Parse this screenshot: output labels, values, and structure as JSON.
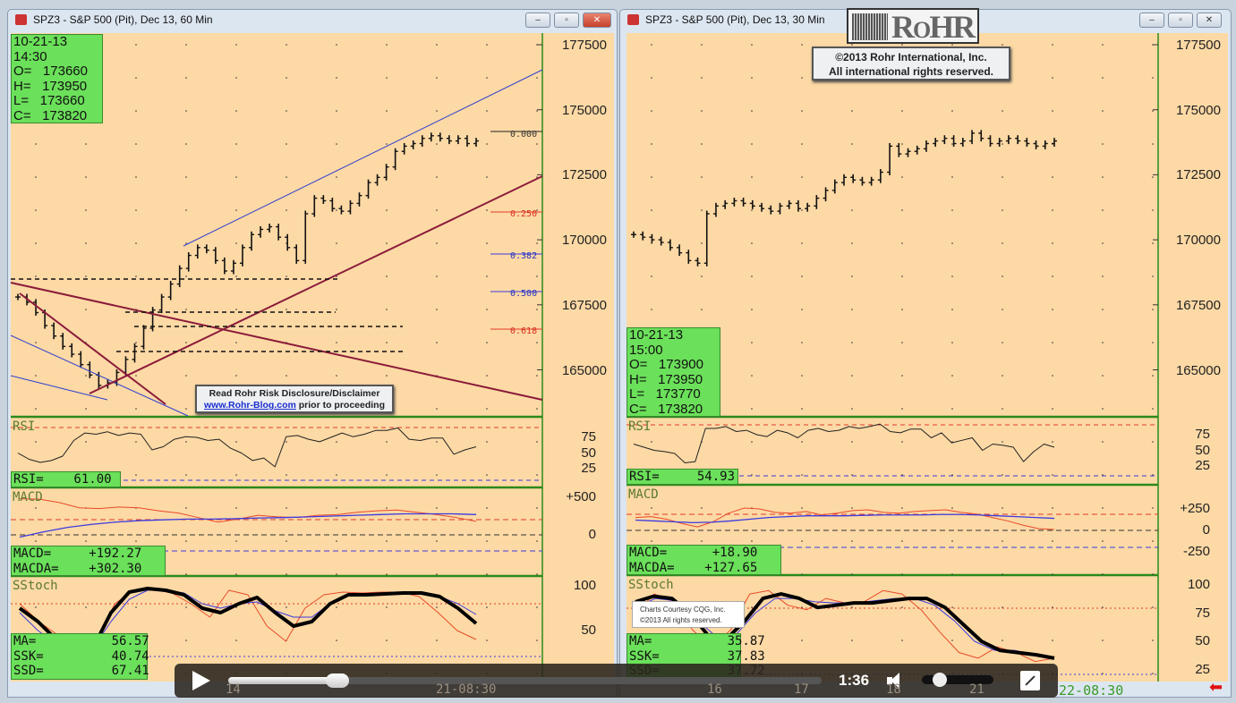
{
  "left": {
    "title": "SPZ3 - S&P 500 (Pit), Dec 13, 60 Min",
    "ohlc": [
      "10-21-13",
      "14:30",
      "O=   173660",
      "H=   173950",
      "L=   173660",
      "C=   173820"
    ],
    "price_axis": [
      "177500",
      "175000",
      "172500",
      "170000",
      "167500",
      "165000"
    ],
    "fib": [
      {
        "label": "0.000",
        "color": "#333333"
      },
      {
        "label": "0.250",
        "color": "#d83020"
      },
      {
        "label": "0.382",
        "color": "#2030c0"
      },
      {
        "label": "0.500",
        "color": "#2030c0"
      },
      {
        "label": "0.618",
        "color": "#d83020"
      }
    ],
    "rsi": {
      "title": "RSI",
      "box": "RSI=    61.00",
      "axis": [
        "75",
        "50",
        "25"
      ]
    },
    "macd": {
      "title": "MACD",
      "box": "MACD=     +192.27\nMACDA=    +302.30",
      "axis": [
        "+500",
        "0"
      ]
    },
    "stoch": {
      "title": "SStoch",
      "box": "MA=          56.57\nSSK=         40.74\nSSD=         67.41",
      "axis": [
        "100",
        "50"
      ]
    },
    "time_axis": [
      "14",
      "21-08:30"
    ],
    "closes": [
      167800,
      167600,
      167200,
      166700,
      166300,
      165900,
      165600,
      165200,
      164800,
      164400,
      164500,
      164900,
      165400,
      165900,
      166600,
      167300,
      167800,
      168300,
      168900,
      169400,
      169700,
      169600,
      169200,
      168800,
      169100,
      169700,
      170200,
      170400,
      170500,
      170100,
      169700,
      169200,
      171000,
      171600,
      171500,
      171200,
      171100,
      171400,
      171700,
      172200,
      172400,
      172800,
      173400,
      173600,
      173700,
      173900,
      174000,
      173900,
      173800,
      173900,
      173700,
      173800
    ],
    "rsi_values": [
      50,
      40,
      35,
      38,
      45,
      70,
      82,
      80,
      84,
      78,
      82,
      80,
      55,
      60,
      72,
      76,
      75,
      70,
      72,
      58,
      50,
      38,
      42,
      28,
      76,
      78,
      72,
      68,
      75,
      82,
      76,
      80,
      86,
      86,
      90,
      72,
      70,
      74,
      74,
      48,
      55,
      60
    ],
    "macd_values": [
      480,
      475,
      430,
      360,
      350,
      370,
      360,
      320,
      290,
      230,
      170,
      210,
      260,
      240,
      230,
      260,
      270,
      300,
      320,
      330,
      300,
      270,
      230,
      180
    ],
    "macda_values": [
      -30,
      40,
      100,
      140,
      170,
      190,
      200,
      210,
      210,
      215,
      225,
      230,
      240,
      250,
      260,
      270,
      280,
      280,
      280,
      270
    ],
    "stoch_ma": [
      75,
      60,
      40,
      20,
      30,
      70,
      93,
      97,
      95,
      90,
      75,
      70,
      80,
      87,
      70,
      55,
      60,
      80,
      90,
      90,
      91,
      92,
      92,
      88,
      75,
      58
    ],
    "stoch_k": [
      80,
      60,
      45,
      35,
      35,
      80,
      95,
      96,
      92,
      80,
      65,
      95,
      90,
      55,
      38,
      75,
      90,
      93,
      92,
      93,
      93,
      88,
      70,
      50,
      40
    ],
    "stoch_d": [
      70,
      50,
      35,
      25,
      30,
      60,
      85,
      95,
      95,
      92,
      80,
      75,
      80,
      82,
      72,
      65,
      65,
      80,
      90,
      90,
      91,
      92,
      92,
      88,
      80,
      68
    ]
  },
  "right": {
    "title": "SPZ3 - S&P 500 (Pit), Dec 13, 30 Min",
    "ohlc": [
      "10-21-13",
      "15:00",
      "O=   173900",
      "H=   173950",
      "L=   173770",
      "C=   173820"
    ],
    "price_axis": [
      "177500",
      "175000",
      "172500",
      "170000",
      "167500",
      "165000"
    ],
    "rsi": {
      "title": "RSI",
      "box": "RSI=     54.93",
      "axis": [
        "75",
        "50",
        "25"
      ]
    },
    "macd": {
      "title": "MACD",
      "box": "MACD=      +18.90\nMACDA=    +127.65",
      "axis": [
        "+250",
        "0",
        "-250"
      ]
    },
    "stoch": {
      "title": "SStoch",
      "box": "MA=          35.87\nSSK=         37.83\nSSD=         37.72",
      "axis": [
        "100",
        "75",
        "50",
        "25"
      ]
    },
    "time_axis": [
      "16",
      "17",
      "18",
      "21",
      "22-08:30"
    ],
    "closes": [
      170200,
      170100,
      170000,
      169900,
      169700,
      169500,
      169200,
      169100,
      171000,
      171300,
      171400,
      171500,
      171400,
      171300,
      171200,
      171100,
      171300,
      171400,
      171200,
      171300,
      171600,
      171900,
      172200,
      172400,
      172300,
      172200,
      172300,
      172600,
      173600,
      173300,
      173400,
      173500,
      173700,
      173800,
      173900,
      173700,
      173800,
      174100,
      173900,
      173700,
      173800,
      173900,
      173800,
      173700,
      173600,
      173700,
      173800
    ],
    "rsi_values": [
      60,
      55,
      50,
      48,
      45,
      30,
      32,
      85,
      85,
      88,
      80,
      82,
      75,
      72,
      82,
      78,
      70,
      82,
      85,
      80,
      82,
      88,
      85,
      88,
      92,
      80,
      78,
      84,
      84,
      70,
      78,
      62,
      66,
      70,
      50,
      60,
      58,
      55,
      32,
      48,
      60,
      55
    ],
    "macd_values": [
      150,
      160,
      130,
      80,
      40,
      100,
      200,
      260,
      250,
      210,
      200,
      220,
      180,
      200,
      230,
      240,
      210,
      200,
      220,
      230,
      240,
      210,
      190,
      150,
      110,
      60,
      20,
      10
    ],
    "macda_values": [
      120,
      110,
      100,
      90,
      95,
      110,
      130,
      150,
      160,
      170,
      170,
      170,
      175,
      180,
      180,
      180,
      185,
      185,
      180,
      170,
      160,
      150,
      140
    ],
    "stoch_ma": [
      85,
      90,
      88,
      75,
      55,
      52,
      68,
      88,
      92,
      88,
      80,
      82,
      84,
      84,
      86,
      88,
      88,
      80,
      65,
      50,
      42,
      40,
      38,
      35
    ],
    "stoch_k": [
      75,
      92,
      85,
      60,
      45,
      60,
      92,
      95,
      82,
      78,
      88,
      84,
      85,
      95,
      92,
      78,
      58,
      40,
      35,
      45,
      40,
      32,
      35
    ],
    "stoch_d": [
      80,
      88,
      86,
      70,
      55,
      55,
      75,
      88,
      88,
      85,
      84,
      84,
      86,
      88,
      88,
      82,
      68,
      50,
      42,
      42,
      38,
      36
    ]
  },
  "watermark": {
    "logo": "ROHR",
    "copyright": "©2013  Rohr International, Inc.",
    "rights": "All international rights reserved."
  },
  "disclaimer": {
    "line1": "Read Rohr Risk Disclosure/Disclaimer",
    "link": "www.Rohr-Blog.com",
    "rest": " prior to proceeding"
  },
  "courtesy": {
    "line1": "Charts Courtesy CQG, Inc.",
    "line2": "©2013 All rights reserved."
  },
  "player": {
    "time": "1:36",
    "progress": 0.18,
    "volume": 0.15
  },
  "colors": {
    "panel_bg": "#fdd9a5",
    "databox": "#6be05a",
    "border": "#3a8a30",
    "channel": "#3040d0",
    "trend": "#8a1a3a"
  }
}
